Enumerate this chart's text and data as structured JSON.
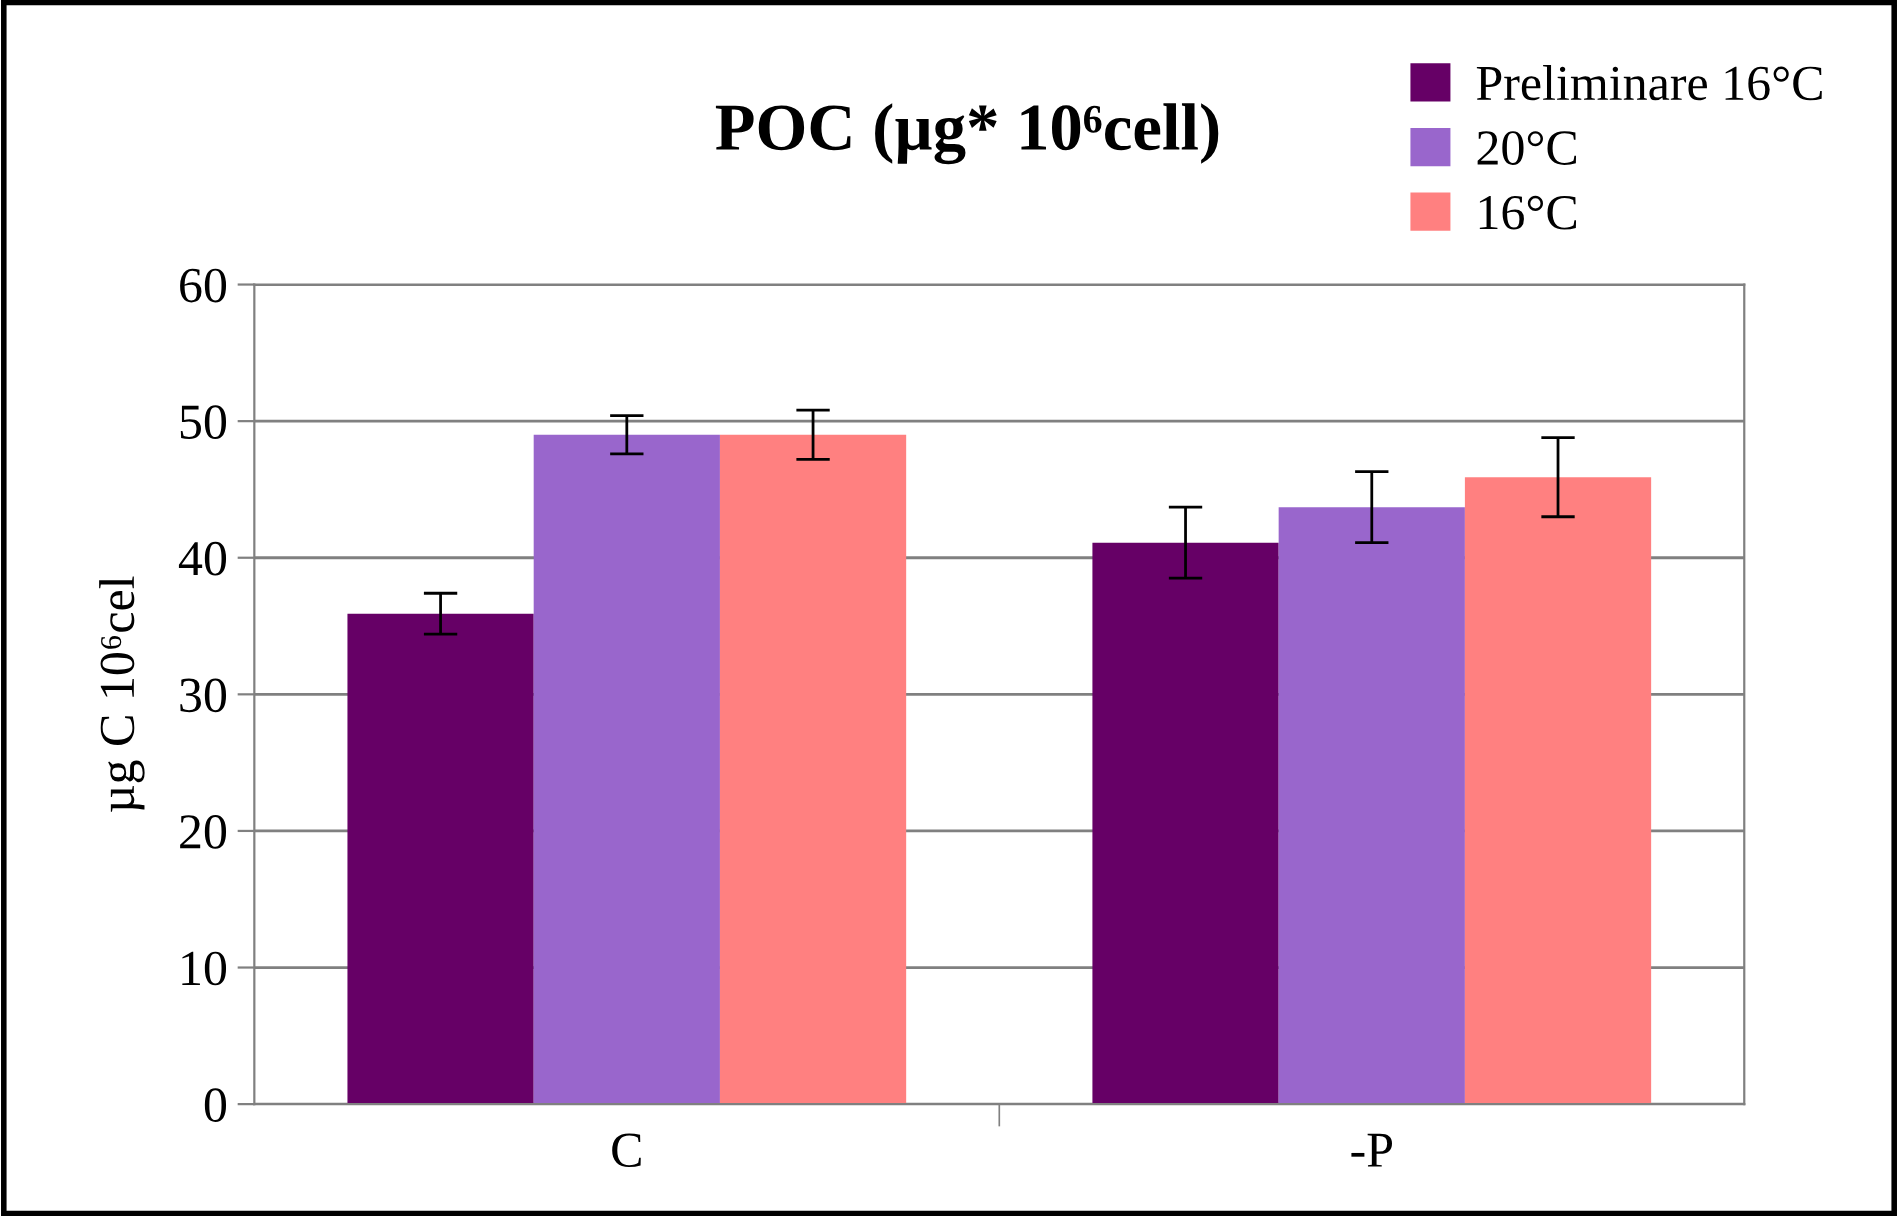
{
  "chart_data": {
    "type": "bar",
    "title": "POC (µg* 10⁶cell)",
    "ylabel": "µg C 10⁶cel",
    "categories": [
      "C",
      "-P"
    ],
    "series": [
      {
        "name": "Preliminare 16°C",
        "color": "#660066",
        "values": [
          35.9,
          41.1
        ],
        "errors": [
          1.5,
          2.6
        ]
      },
      {
        "name": "20°C",
        "color": "#9966cc",
        "values": [
          49.0,
          43.7
        ],
        "errors": [
          1.4,
          2.6
        ]
      },
      {
        "name": "16°C",
        "color": "#ff8080",
        "values": [
          49.0,
          45.9
        ],
        "errors": [
          1.8,
          2.9
        ]
      }
    ],
    "ylim": [
      0,
      60
    ],
    "yticks": [
      0,
      10,
      20,
      30,
      40,
      50,
      60
    ],
    "grid": "y",
    "legend": "top right"
  }
}
